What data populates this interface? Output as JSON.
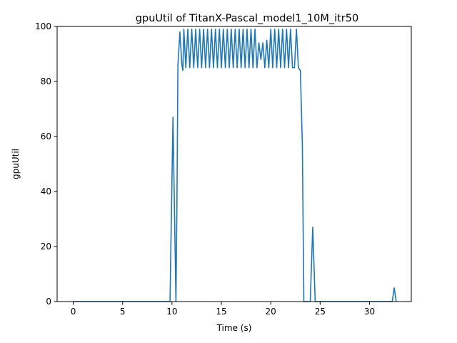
{
  "chart_data": {
    "type": "line",
    "title": "gpuUtil of TitanX-Pascal_model1_10M_itr50",
    "xlabel": "Time (s)",
    "ylabel": "gpuUtil",
    "xlim": [
      -1.63,
      34.23
    ],
    "ylim": [
      0,
      100
    ],
    "x_ticks": [
      0,
      5,
      10,
      15,
      20,
      25,
      30
    ],
    "y_ticks": [
      0,
      20,
      40,
      60,
      80,
      100
    ],
    "grid": false,
    "series": [
      {
        "name": "gpuUtil",
        "color": "#1f77b4",
        "x": [
          0.0,
          9.8,
          10.1,
          10.4,
          10.5,
          10.6,
          10.8,
          11.0,
          11.1,
          11.2,
          11.4,
          11.6,
          11.8,
          12.0,
          12.2,
          12.4,
          12.6,
          12.8,
          13.0,
          13.2,
          13.4,
          13.6,
          13.8,
          14.0,
          14.2,
          14.4,
          14.6,
          14.8,
          15.0,
          15.2,
          15.4,
          15.6,
          15.8,
          16.0,
          16.2,
          16.4,
          16.6,
          16.8,
          17.0,
          17.2,
          17.4,
          17.6,
          17.8,
          18.0,
          18.2,
          18.4,
          18.6,
          18.8,
          19.0,
          19.2,
          19.4,
          19.6,
          19.8,
          20.0,
          20.2,
          20.4,
          20.6,
          20.8,
          21.0,
          21.2,
          21.4,
          21.6,
          21.8,
          22.0,
          22.2,
          22.4,
          22.6,
          22.8,
          23.0,
          23.2,
          23.35,
          23.5,
          24.0,
          24.25,
          24.5,
          32.3,
          32.5,
          32.7
        ],
        "values": [
          0,
          0,
          67,
          0,
          35,
          86,
          98,
          86,
          84,
          99,
          85,
          99,
          85,
          99,
          85,
          99,
          85,
          99,
          85,
          99,
          85,
          99,
          85,
          99,
          85,
          99,
          85,
          99,
          85,
          99,
          85,
          99,
          85,
          99,
          85,
          99,
          85,
          99,
          85,
          99,
          85,
          99,
          85,
          99,
          85,
          99,
          85,
          94,
          88,
          94,
          85,
          95,
          85,
          99,
          85,
          99,
          85,
          99,
          85,
          99,
          85,
          99,
          85,
          99,
          85,
          85,
          99,
          85,
          84,
          57,
          0,
          0,
          0,
          27,
          0,
          0,
          5,
          0
        ]
      }
    ]
  }
}
